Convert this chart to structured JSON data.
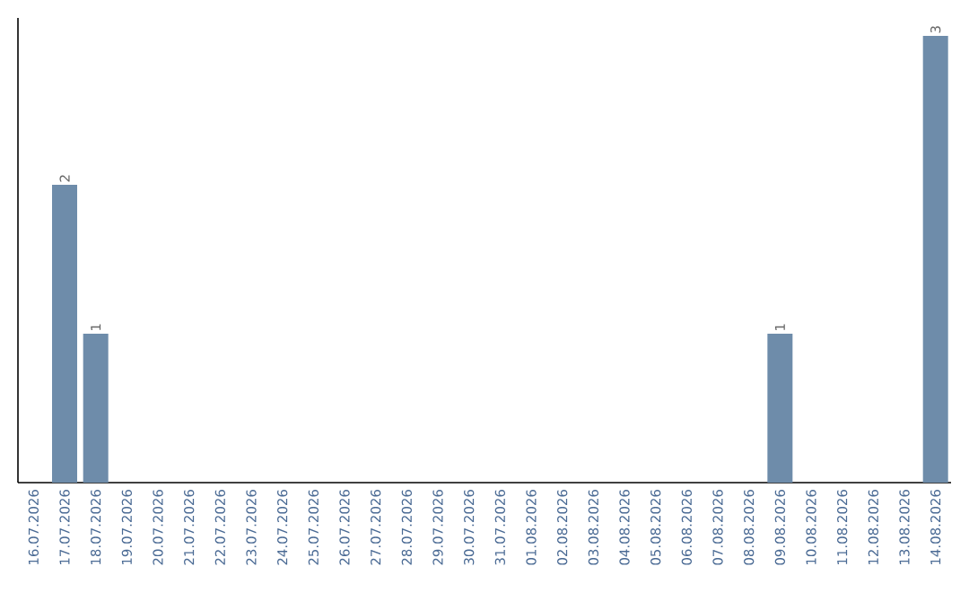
{
  "chart_data": {
    "type": "bar",
    "categories": [
      "16.07.2026",
      "17.07.2026",
      "18.07.2026",
      "19.07.2026",
      "20.07.2026",
      "21.07.2026",
      "22.07.2026",
      "23.07.2026",
      "24.07.2026",
      "25.07.2026",
      "26.07.2026",
      "27.07.2026",
      "28.07.2026",
      "29.07.2026",
      "30.07.2026",
      "31.07.2026",
      "01.08.2026",
      "02.08.2026",
      "03.08.2026",
      "04.08.2026",
      "05.08.2026",
      "06.08.2026",
      "07.08.2026",
      "08.08.2026",
      "09.08.2026",
      "10.08.2026",
      "11.08.2026",
      "12.08.2026",
      "13.08.2026",
      "14.08.2026"
    ],
    "values": [
      0,
      2,
      1,
      0,
      0,
      0,
      0,
      0,
      0,
      0,
      0,
      0,
      0,
      0,
      0,
      0,
      0,
      0,
      0,
      0,
      0,
      0,
      0,
      0,
      1,
      0,
      0,
      0,
      0,
      3
    ],
    "value_labels": [
      null,
      "2",
      "1",
      null,
      null,
      null,
      null,
      null,
      null,
      null,
      null,
      null,
      null,
      null,
      null,
      null,
      null,
      null,
      null,
      null,
      null,
      null,
      null,
      null,
      "1",
      null,
      null,
      null,
      null,
      "3"
    ],
    "color": "#6e8caa",
    "tick_labels": "x"
  }
}
